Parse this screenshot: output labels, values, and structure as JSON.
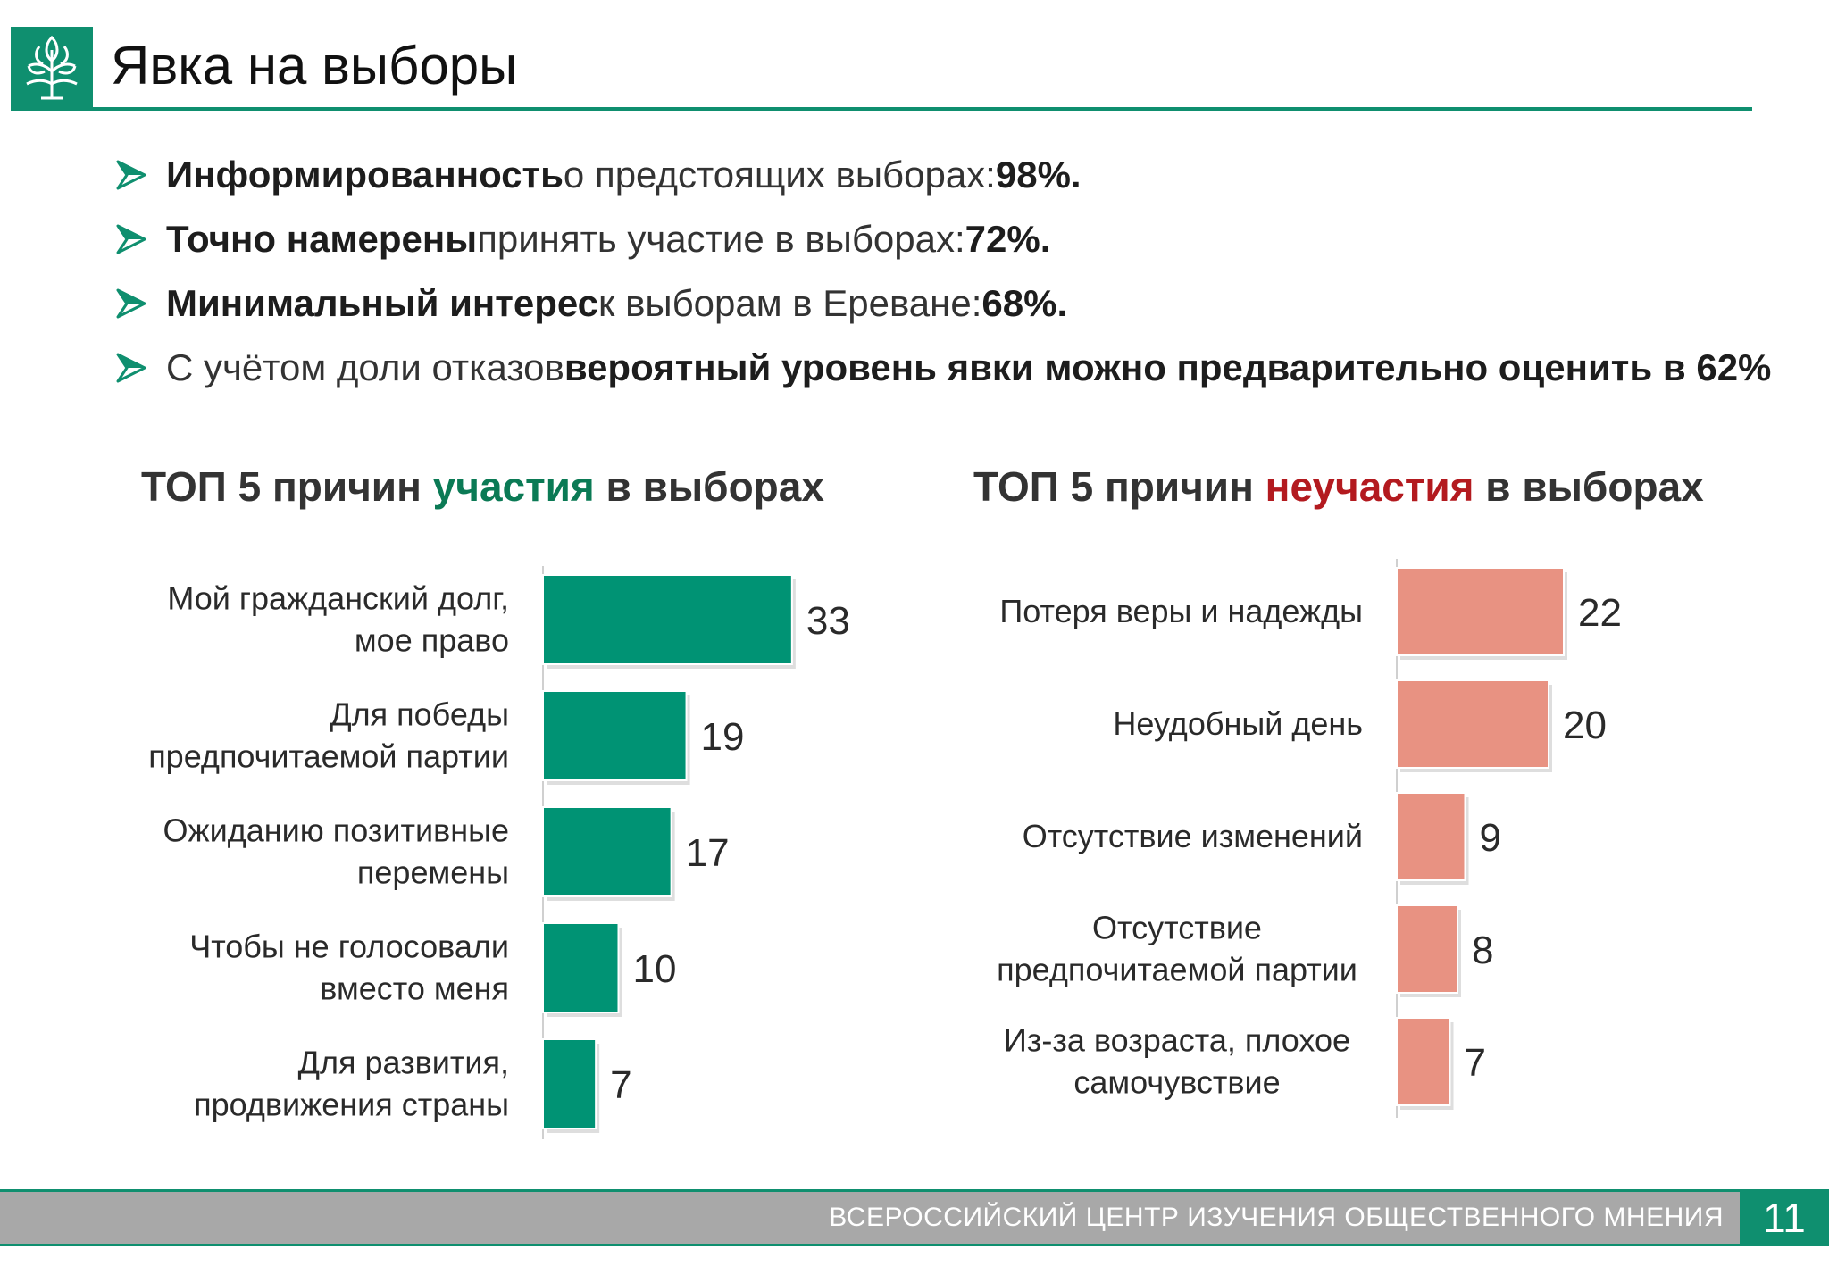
{
  "header": {
    "title": "Явка на выборы"
  },
  "bullets": [
    {
      "lead": "Информированность",
      "rest": " о предстоящих выборах: ",
      "value": "98%."
    },
    {
      "lead": "Точно намерены",
      "rest": " принять участие в выборах: ",
      "value": "72%."
    },
    {
      "lead": "Минимальный интерес",
      "rest": "  к выборам в Ереване: ",
      "value": "68%."
    },
    {
      "lead": "",
      "rest": "С учётом доли отказов ",
      "value": "вероятный уровень явки можно предварительно оценить в 62%"
    }
  ],
  "colors": {
    "accent": "#0f8f6f",
    "participation_bar": "#009374",
    "nonparticipation_bar": "#e89282",
    "red_word": "#b31a1f",
    "green_word": "#0b7a55"
  },
  "chart_data": [
    {
      "type": "bar",
      "orientation": "horizontal",
      "title_parts": [
        "ТОП 5 причин ",
        "участия",
        " в выборах"
      ],
      "categories": [
        [
          "Мой гражданский долг,",
          "мое право"
        ],
        [
          "Для победы",
          "предпочитаемой партии"
        ],
        [
          "Ожиданию позитивные",
          "перемены"
        ],
        [
          "Чтобы не голосовали",
          "вместо меня"
        ],
        [
          "Для развития,",
          "продвижения страны"
        ]
      ],
      "values": [
        33,
        19,
        17,
        10,
        7
      ],
      "xlim": [
        0,
        35
      ],
      "grid": false,
      "legend": "none"
    },
    {
      "type": "bar",
      "orientation": "horizontal",
      "title_parts": [
        "ТОП 5 причин  ",
        "неучастия",
        " в выборах"
      ],
      "categories": [
        [
          "Потеря веры и надежды"
        ],
        [
          "Неудобный день"
        ],
        [
          "Отсутствие изменений"
        ],
        [
          "Отсутствие",
          "предпочитаемой  партии"
        ],
        [
          "Из-за возраста, плохое",
          "самочувствие"
        ]
      ],
      "values": [
        22,
        20,
        9,
        8,
        7
      ],
      "xlim": [
        0,
        24
      ],
      "grid": false,
      "legend": "none"
    }
  ],
  "footer": {
    "org": "ВСЕРОССИЙСКИЙ ЦЕНТР ИЗУЧЕНИЯ ОБЩЕСТВЕННОГО МНЕНИЯ",
    "page_number": "11"
  }
}
